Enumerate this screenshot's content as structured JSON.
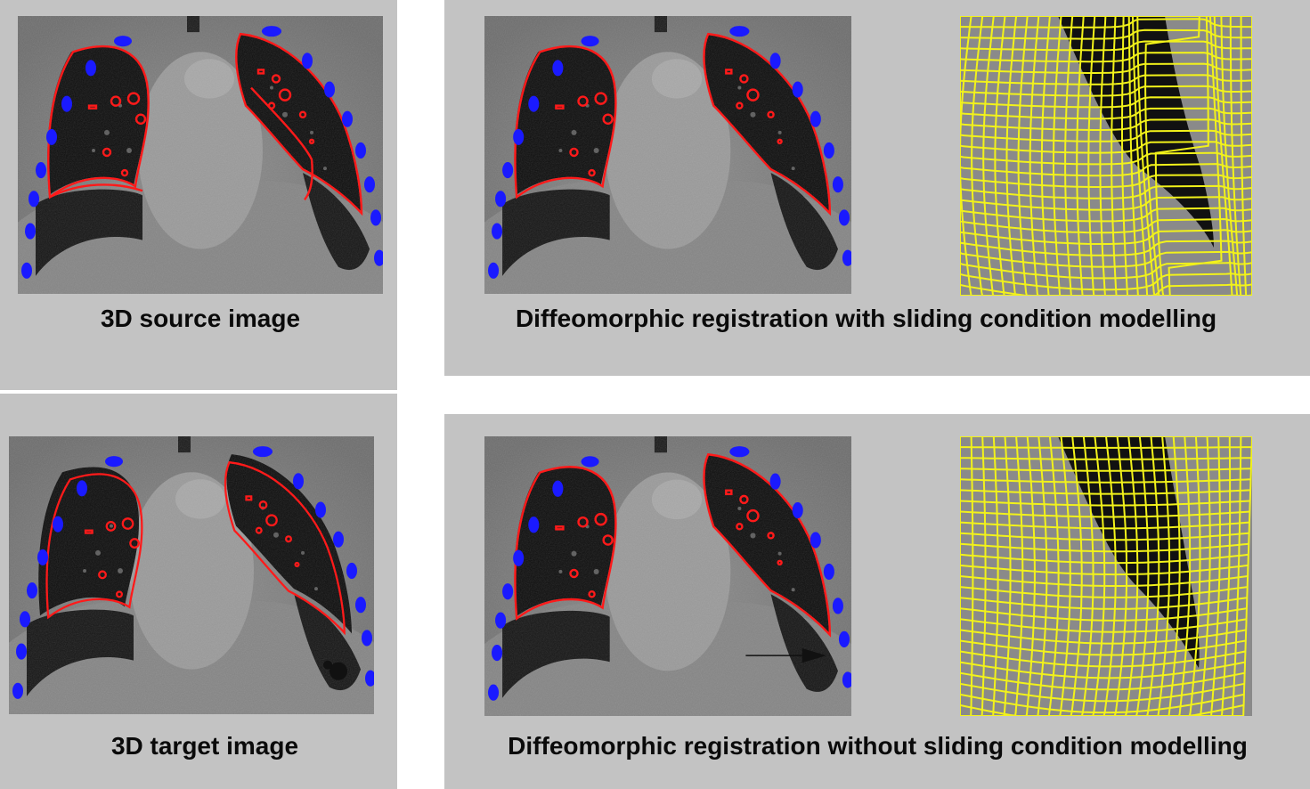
{
  "panels": {
    "source": {
      "caption": "3D source image"
    },
    "target": {
      "caption": "3D target image"
    },
    "with_sliding": {
      "caption": "Diffeomorphic registration with sliding condition modelling"
    },
    "without_sliding": {
      "caption": "Diffeomorphic registration without sliding condition modelling"
    }
  },
  "colors": {
    "panel_background": "#c3c3c3",
    "lung_contour": "#ff1a1a",
    "rib_landmarks": "#1a1aff",
    "deformation_grid": "#f2f21a",
    "caption_text": "#0a0a0a"
  }
}
